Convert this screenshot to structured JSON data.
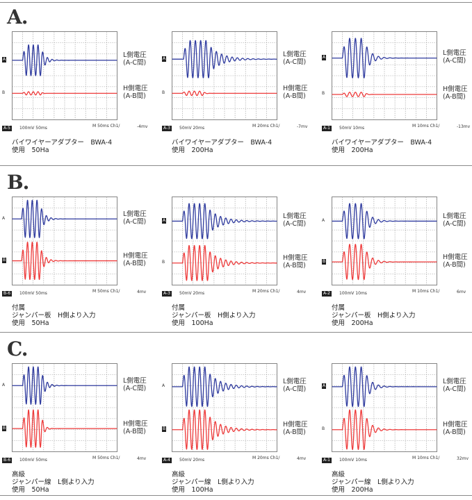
{
  "colors": {
    "ch_a": "#2e3a9e",
    "ch_b": "#ee3a3a",
    "grid": "#9a9a9a",
    "divider": "#8a8a8a"
  },
  "labels": {
    "l_side": "L側電圧\n(A-C間)",
    "h_side": "H側電圧\n(A-B間)"
  },
  "sections": [
    {
      "title": "A.",
      "panels": [
        {
          "tag": "A-5",
          "scale": "100mV   50ms",
          "time": "M 50ms Ch1/",
          "offset": "-4mv",
          "caption": "バイワイヤーアダプター　BWA-4\n使用　50Ha",
          "a_marker": "A",
          "a_boxed": true,
          "b_marker": "B",
          "b_boxed": false
        },
        {
          "tag": "A-3",
          "scale": "50mV   20ms",
          "time": "M 20ms Ch1/",
          "offset": "-7mv",
          "caption": "バイワイヤーアダプター　BWA-4\n使用　200Ha",
          "a_marker": "A",
          "a_boxed": true,
          "b_marker": "B",
          "b_boxed": false
        },
        {
          "tag": "A-1",
          "scale": "50mV   10ms",
          "time": "M 10ms Ch1/",
          "offset": "-13mv",
          "caption": "バイワイヤーアダプター　BWA-4\n使用　200Ha",
          "a_marker": "A",
          "a_boxed": true,
          "b_marker": "B",
          "b_boxed": false
        }
      ]
    },
    {
      "title": "B.",
      "panels": [
        {
          "tag": "B-6",
          "scale": "100mV   50ms",
          "time": "M 50ms Ch1/",
          "offset": "4mv",
          "caption": "付属\nジャンパー板　H側より入力\n使用　50Ha",
          "a_marker": "A",
          "a_boxed": false,
          "b_marker": "B",
          "b_boxed": true
        },
        {
          "tag": "A-3",
          "scale": "50mV   20ms",
          "time": "M 20ms Ch1/",
          "offset": "4mv",
          "caption": "付属\nジャンパー板　H側より入力\n使用　100Ha",
          "a_marker": "A",
          "a_boxed": true,
          "b_marker": "B",
          "b_boxed": false
        },
        {
          "tag": "A-2",
          "scale": "100mV   10ms",
          "time": "M 10ms Ch1/",
          "offset": "6mv",
          "caption": "付属\nジャンパー板　H側より入力\n使用　200Ha",
          "a_marker": "A",
          "a_boxed": false,
          "b_marker": "B",
          "b_boxed": true
        }
      ]
    },
    {
      "title": "C.",
      "panels": [
        {
          "tag": "B-6",
          "scale": "100mV   50ms",
          "time": "M 50ms Ch1/",
          "offset": "4mv",
          "caption": "高級\nジャンパー線　L側より入力\n使用　50Ha",
          "a_marker": "A",
          "a_boxed": false,
          "b_marker": "B",
          "b_boxed": true
        },
        {
          "tag": "A-4",
          "scale": "50mV   20ms",
          "time": "M 20ms Ch1/",
          "offset": "4mv",
          "caption": "高級\nジャンパー線　L側より入力\n使用　100Ha",
          "a_marker": "A",
          "a_boxed": false,
          "b_marker": "B",
          "b_boxed": true
        },
        {
          "tag": "A-1",
          "scale": "100mV   10ms",
          "time": "M 10ms Ch1/",
          "offset": "32mv",
          "caption": "高級\nジャンパー線　L側より入力\n使用　200Ha",
          "a_marker": "A",
          "a_boxed": true,
          "b_marker": "B",
          "b_boxed": false
        }
      ]
    }
  ],
  "chart_data": [
    {
      "type": "line",
      "title": "A-5 BWA-4 50Ha",
      "x_divisions": 10,
      "y_divisions": 8,
      "grid": true,
      "series": [
        {
          "name": "L側電圧 (A-C間)",
          "baseline_div": 5.4,
          "burst": {
            "start_div": 1.0,
            "cycles": 4,
            "period_div": 0.45,
            "amp_div": 1.4,
            "decay_div": 0.8
          }
        },
        {
          "name": "H側電圧 (A-B間)",
          "baseline_div": 2.4,
          "burst": {
            "start_div": 1.0,
            "cycles": 4,
            "period_div": 0.45,
            "amp_div": 0.15,
            "decay_div": 0.2
          }
        }
      ]
    },
    {
      "type": "line",
      "title": "A-3 BWA-4 200Ha",
      "x_divisions": 10,
      "y_divisions": 8,
      "grid": true,
      "series": [
        {
          "name": "L側電圧 (A-C間)",
          "baseline_div": 5.5,
          "burst": {
            "start_div": 1.1,
            "cycles": 5,
            "period_div": 0.5,
            "amp_div": 1.7,
            "decay_div": 2.5
          }
        },
        {
          "name": "H側電圧 (A-B間)",
          "baseline_div": 2.4,
          "burst": {
            "start_div": 1.0,
            "cycles": 4,
            "period_div": 0.5,
            "amp_div": 0.2,
            "decay_div": 0.3
          }
        }
      ]
    },
    {
      "type": "line",
      "title": "A-1 BWA-4 200Ha",
      "x_divisions": 10,
      "y_divisions": 8,
      "grid": true,
      "series": [
        {
          "name": "L側電圧 (A-C間)",
          "baseline_div": 5.6,
          "burst": {
            "start_div": 1.0,
            "cycles": 4,
            "period_div": 0.55,
            "amp_div": 1.8,
            "decay_div": 1.2
          }
        },
        {
          "name": "H側電圧 (A-B間)",
          "baseline_div": 2.3,
          "burst": {
            "start_div": 1.0,
            "cycles": 4,
            "period_div": 0.55,
            "amp_div": 0.2,
            "decay_div": 0.3
          }
        }
      ]
    },
    {
      "type": "line",
      "title": "B-6 ジャンパー板 50Ha",
      "x_divisions": 10,
      "y_divisions": 8,
      "grid": true,
      "series": [
        {
          "name": "L側電圧 (A-C間)",
          "baseline_div": 6.0,
          "burst": {
            "start_div": 0.9,
            "cycles": 4,
            "period_div": 0.45,
            "amp_div": 1.7,
            "decay_div": 0.8
          }
        },
        {
          "name": "H側電圧 (A-B間)",
          "baseline_div": 2.2,
          "burst": {
            "start_div": 0.9,
            "cycles": 4,
            "period_div": 0.45,
            "amp_div": 1.7,
            "decay_div": 0.8
          }
        }
      ]
    },
    {
      "type": "line",
      "title": "A-3 ジャンパー板 100Ha",
      "x_divisions": 10,
      "y_divisions": 8,
      "grid": true,
      "series": [
        {
          "name": "L側電圧 (A-C間)",
          "baseline_div": 5.8,
          "burst": {
            "start_div": 1.0,
            "cycles": 5,
            "period_div": 0.5,
            "amp_div": 1.6,
            "decay_div": 2.5
          }
        },
        {
          "name": "H側電圧 (A-B間)",
          "baseline_div": 2.0,
          "burst": {
            "start_div": 1.0,
            "cycles": 5,
            "period_div": 0.5,
            "amp_div": 1.6,
            "decay_div": 2.5
          }
        }
      ]
    },
    {
      "type": "line",
      "title": "A-2 ジャンパー板 200Ha",
      "x_divisions": 10,
      "y_divisions": 8,
      "grid": true,
      "series": [
        {
          "name": "L側電圧 (A-C間)",
          "baseline_div": 5.8,
          "burst": {
            "start_div": 1.0,
            "cycles": 4,
            "period_div": 0.55,
            "amp_div": 1.6,
            "decay_div": 1.2
          }
        },
        {
          "name": "H側電圧 (A-B間)",
          "baseline_div": 2.1,
          "burst": {
            "start_div": 1.0,
            "cycles": 4,
            "period_div": 0.55,
            "amp_div": 1.6,
            "decay_div": 1.2
          }
        }
      ]
    },
    {
      "type": "line",
      "title": "B-6 ジャンパー線 50Ha",
      "x_divisions": 10,
      "y_divisions": 8,
      "grid": true,
      "series": [
        {
          "name": "L側電圧 (A-C間)",
          "baseline_div": 6.0,
          "burst": {
            "start_div": 1.0,
            "cycles": 4,
            "period_div": 0.45,
            "amp_div": 1.7,
            "decay_div": 0.8
          }
        },
        {
          "name": "H側電圧 (A-B間)",
          "baseline_div": 2.1,
          "burst": {
            "start_div": 1.0,
            "cycles": 4,
            "period_div": 0.45,
            "amp_div": 1.7,
            "decay_div": 0.4
          }
        }
      ]
    },
    {
      "type": "line",
      "title": "A-4 ジャンパー線 100Ha",
      "x_divisions": 10,
      "y_divisions": 8,
      "grid": true,
      "series": [
        {
          "name": "L側電圧 (A-C間)",
          "baseline_div": 5.9,
          "burst": {
            "start_div": 1.0,
            "cycles": 5,
            "period_div": 0.5,
            "amp_div": 1.8,
            "decay_div": 2.5
          }
        },
        {
          "name": "H側電圧 (A-B間)",
          "baseline_div": 2.0,
          "burst": {
            "start_div": 1.0,
            "cycles": 5,
            "period_div": 0.5,
            "amp_div": 1.8,
            "decay_div": 2.5
          }
        }
      ]
    },
    {
      "type": "line",
      "title": "A-1 ジャンパー線 200Ha",
      "x_divisions": 10,
      "y_divisions": 8,
      "grid": true,
      "series": [
        {
          "name": "L側電圧 (A-C間)",
          "baseline_div": 5.9,
          "burst": {
            "start_div": 1.0,
            "cycles": 4,
            "period_div": 0.55,
            "amp_div": 1.8,
            "decay_div": 1.2
          }
        },
        {
          "name": "H側電圧 (A-B間)",
          "baseline_div": 2.0,
          "burst": {
            "start_div": 1.0,
            "cycles": 4,
            "period_div": 0.55,
            "amp_div": 1.8,
            "decay_div": 1.2
          }
        }
      ]
    }
  ]
}
